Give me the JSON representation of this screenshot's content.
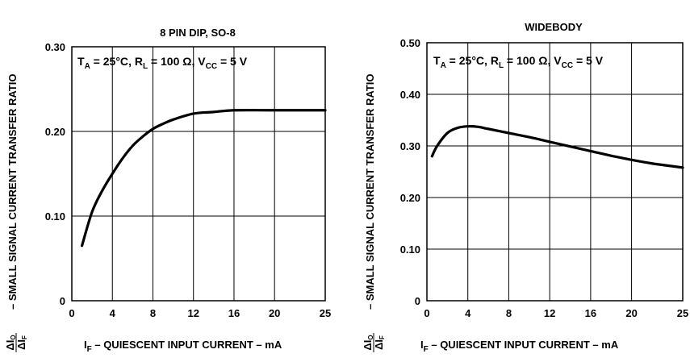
{
  "chart_data": [
    {
      "type": "line",
      "title": "8 PIN DIP, SO-8",
      "conditions": {
        "ta": "T",
        "ta_sub": "A",
        "ta_val": " = 25°C, ",
        "rl": "R",
        "rl_sub": "L",
        "rl_val": "  = 100 Ω, ",
        "vcc": "V",
        "vcc_sub": "CC",
        "vcc_val": " = 5 V"
      },
      "ylabel": "– SMALL SIGNAL CURRENT TRANSFER RATIO",
      "ylabel_frac": {
        "num": "ΔI",
        "num_sub": "O",
        "den": "ΔI",
        "den_sub": "F"
      },
      "xlabel": {
        "main": "I",
        "sub": "F",
        "rest": " – QUIESCENT INPUT CURRENT – mA"
      },
      "xlim": [
        0,
        25
      ],
      "ylim": [
        0,
        0.3
      ],
      "xticks": [
        0,
        4,
        8,
        12,
        16,
        20,
        25
      ],
      "xtick_labels": [
        "0",
        "4",
        "8",
        "12",
        "16",
        "20",
        "25"
      ],
      "yticks": [
        0,
        0.1,
        0.2,
        0.3
      ],
      "ytick_labels": [
        "0",
        "0.10",
        "0.20",
        "0.30"
      ],
      "grid": true,
      "series": [
        {
          "x": [
            1,
            2,
            3,
            4,
            5,
            6,
            7,
            8,
            9,
            10,
            12,
            14,
            16,
            20,
            25
          ],
          "y": [
            0.065,
            0.105,
            0.13,
            0.15,
            0.168,
            0.183,
            0.194,
            0.203,
            0.209,
            0.214,
            0.221,
            0.223,
            0.225,
            0.225,
            0.225
          ]
        }
      ]
    },
    {
      "type": "line",
      "title": "WIDEBODY",
      "conditions": {
        "ta": "T",
        "ta_sub": "A",
        "ta_val": " = 25°C, ",
        "rl": "R",
        "rl_sub": "L",
        "rl_val": "  = 100 Ω, ",
        "vcc": "V",
        "vcc_sub": "CC",
        "vcc_val": " = 5 V"
      },
      "ylabel": "– SMALL SIGNAL CURRENT TRANSFER RATIO",
      "ylabel_frac": {
        "num": "ΔI",
        "num_sub": "O",
        "den": "ΔI",
        "den_sub": "F"
      },
      "xlabel": {
        "main": "I",
        "sub": "F",
        "rest": " – QUIESCENT INPUT CURRENT – mA"
      },
      "xlim": [
        0,
        25
      ],
      "ylim": [
        0,
        0.5
      ],
      "xticks": [
        0,
        4,
        8,
        12,
        16,
        20,
        25
      ],
      "xtick_labels": [
        "0",
        "4",
        "8",
        "12",
        "16",
        "20",
        "25"
      ],
      "yticks": [
        0,
        0.1,
        0.2,
        0.3,
        0.4,
        0.5
      ],
      "ytick_labels": [
        "0",
        "0.10",
        "0.20",
        "0.30",
        "0.40",
        "0.50"
      ],
      "grid": true,
      "series": [
        {
          "x": [
            0.5,
            1,
            2,
            3,
            4,
            5,
            6,
            8,
            10,
            12,
            14,
            16,
            18,
            20,
            22,
            25
          ],
          "y": [
            0.28,
            0.3,
            0.325,
            0.335,
            0.338,
            0.337,
            0.333,
            0.325,
            0.317,
            0.308,
            0.299,
            0.29,
            0.281,
            0.273,
            0.266,
            0.258
          ]
        }
      ]
    }
  ]
}
